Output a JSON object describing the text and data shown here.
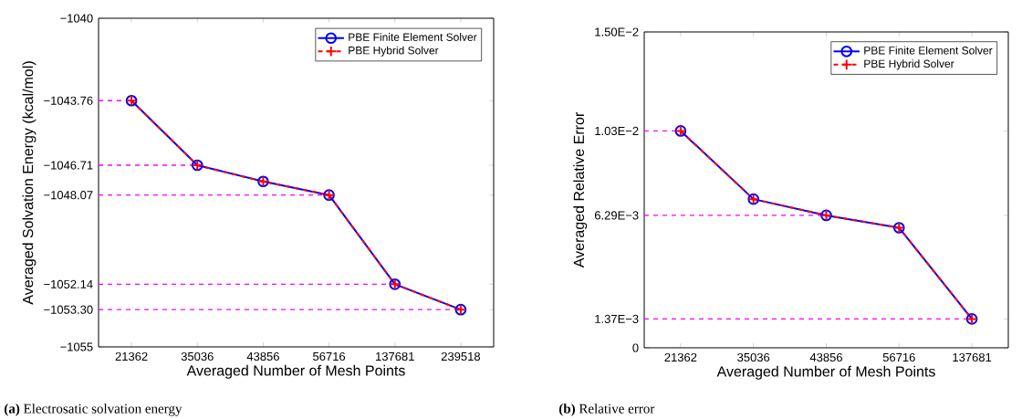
{
  "chart_data": [
    {
      "type": "line",
      "xlabel": "Averaged Number of Mesh Points",
      "ylabel": "Averaged Solvation Energy (kcal/mol)",
      "categories": [
        "21362",
        "35036",
        "43856",
        "56716",
        "137681",
        "239518"
      ],
      "series": [
        {
          "name": "PBE Finite Element Solver",
          "color": "#0000ff",
          "marker": "circle",
          "line_style": "solid",
          "values": [
            -1043.76,
            -1046.71,
            -1047.45,
            -1048.07,
            -1052.14,
            -1053.3
          ]
        },
        {
          "name": "PBE Hybrid Solver",
          "color": "#ff0000",
          "marker": "cross",
          "line_style": "dashed",
          "values": [
            -1043.76,
            -1046.71,
            -1047.45,
            -1048.07,
            -1052.14,
            -1053.3
          ]
        }
      ],
      "ylim": [
        -1055,
        -1040
      ],
      "yticks": [
        {
          "value": -1055,
          "label": "−1055"
        },
        {
          "value": -1053.3,
          "label": "−1053.30"
        },
        {
          "value": -1052.14,
          "label": "−1052.14"
        },
        {
          "value": -1048.07,
          "label": "−1048.07"
        },
        {
          "value": -1046.71,
          "label": "−1046.71"
        },
        {
          "value": -1043.76,
          "label": "−1043.76"
        },
        {
          "value": -1040,
          "label": "−1040"
        }
      ],
      "ref_lines": [
        {
          "axis": "y",
          "value": -1043.76,
          "color": "#ff00ff",
          "line_style": "dashed"
        },
        {
          "axis": "y",
          "value": -1046.71,
          "color": "#ff00ff",
          "line_style": "dashed"
        },
        {
          "axis": "y",
          "value": -1048.07,
          "color": "#ff00ff",
          "line_style": "dashed"
        },
        {
          "axis": "y",
          "value": -1052.14,
          "color": "#ff00ff",
          "line_style": "dashed"
        },
        {
          "axis": "y",
          "value": -1053.3,
          "color": "#ff00ff",
          "line_style": "dashed"
        }
      ],
      "legend": "top right",
      "annotations": [
        "**(a)** Electrosatic solvation energy"
      ]
    },
    {
      "type": "line",
      "xlabel": "Averaged Number of Mesh Points",
      "ylabel": "Averaged Relative Error",
      "categories": [
        "21362",
        "35036",
        "43856",
        "56716",
        "137681"
      ],
      "series": [
        {
          "name": "PBE Finite Element Solver",
          "color": "#0000ff",
          "marker": "circle",
          "line_style": "solid",
          "values": [
            0.0103,
            0.00706,
            0.00629,
            0.0057,
            0.00137
          ]
        },
        {
          "name": "PBE Hybrid Solver",
          "color": "#ff0000",
          "marker": "cross",
          "line_style": "dashed",
          "values": [
            0.0103,
            0.00706,
            0.00629,
            0.0057,
            0.00137
          ]
        }
      ],
      "ylim": [
        0,
        0.015
      ],
      "yticks": [
        0,
        {
          "value": 0.00137,
          "label": "1.37E−3"
        },
        {
          "value": 0.00629,
          "label": "6.29E−3"
        },
        {
          "value": 0.0103,
          "label": "1.03E−2"
        },
        {
          "value": 0.015,
          "label": "1.50E−2"
        }
      ],
      "ref_lines": [
        {
          "axis": "y",
          "value": 0.0103,
          "color": "#ff00ff",
          "line_style": "dashed"
        },
        {
          "axis": "y",
          "value": 0.00629,
          "color": "#ff00ff",
          "line_style": "dashed"
        },
        {
          "axis": "y",
          "value": 0.00137,
          "color": "#ff00ff",
          "line_style": "dashed"
        }
      ],
      "legend": "top right",
      "annotations": [
        "**(b)** Relative error"
      ]
    }
  ]
}
